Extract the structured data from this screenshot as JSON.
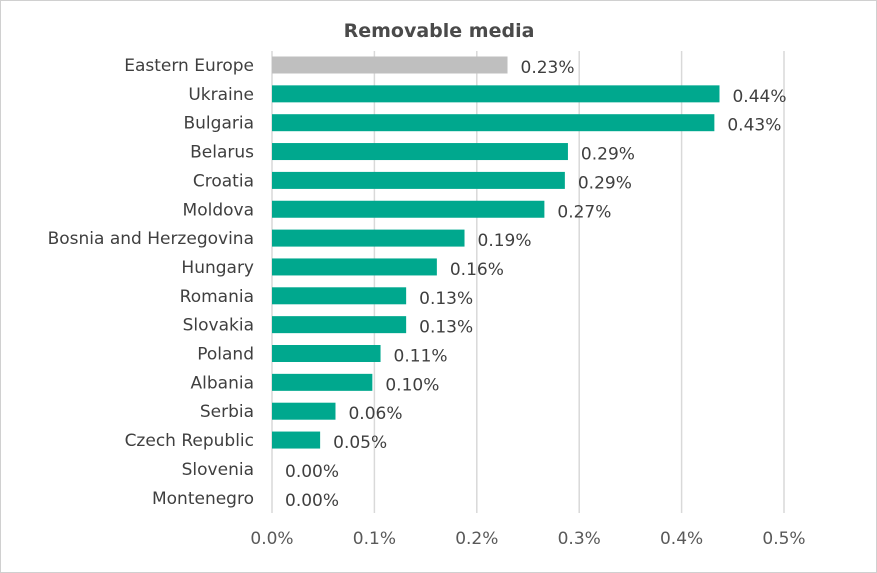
{
  "chart_data": {
    "type": "bar",
    "orientation": "horizontal",
    "title": "Removable media",
    "xlabel": "",
    "ylabel": "",
    "xlim": [
      0,
      0.5
    ],
    "grid": true,
    "ticks": [
      "0.0%",
      "0.1%",
      "0.2%",
      "0.3%",
      "0.4%",
      "0.5%"
    ],
    "tick_values": [
      0,
      0.1,
      0.2,
      0.3,
      0.4,
      0.5
    ],
    "categories": [
      "Eastern Europe",
      "Ukraine",
      "Bulgaria",
      "Belarus",
      "Croatia",
      "Moldova",
      "Bosnia and Herzegovina",
      "Hungary",
      "Romania",
      "Slovakia",
      "Poland",
      "Albania",
      "Serbia",
      "Czech Republic",
      "Slovenia",
      "Montenegro"
    ],
    "values": [
      0.23,
      0.437,
      0.432,
      0.289,
      0.286,
      0.266,
      0.188,
      0.161,
      0.131,
      0.131,
      0.106,
      0.098,
      0.062,
      0.047,
      0.0,
      0.0
    ],
    "value_labels": [
      "0.23%",
      "0.44%",
      "0.43%",
      "0.29%",
      "0.29%",
      "0.27%",
      "0.19%",
      "0.16%",
      "0.13%",
      "0.13%",
      "0.11%",
      "0.10%",
      "0.06%",
      "0.05%",
      "0.00%",
      "0.00%"
    ],
    "colors": {
      "highlight": "#bfbfbf",
      "bar": "#00a88e"
    },
    "highlight_index": 0
  }
}
